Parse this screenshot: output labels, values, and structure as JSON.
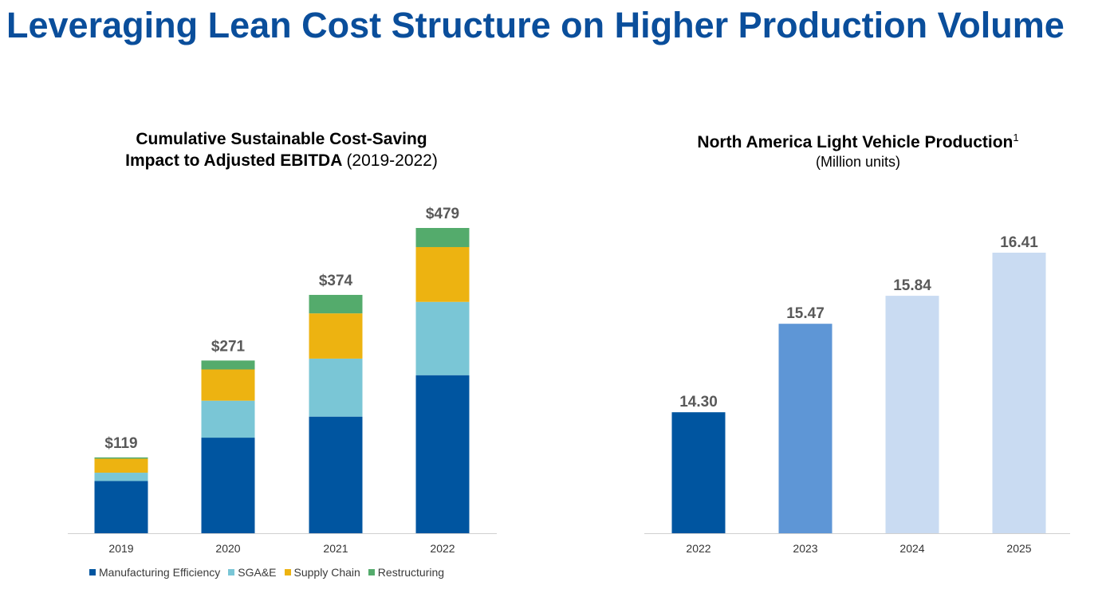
{
  "page": {
    "title": "Leveraging Lean Cost Structure on Higher Production Volume"
  },
  "chart_data": [
    {
      "type": "bar",
      "stacked": true,
      "title_line1": "Cumulative Sustainable Cost-Saving",
      "title_line2_bold": "Impact to Adjusted EBITDA",
      "title_line2_normal": "(2019-2022)",
      "categories": [
        "2019",
        "2020",
        "2021",
        "2022"
      ],
      "totals": [
        119,
        271,
        374,
        479
      ],
      "total_labels": [
        "$119",
        "$271",
        "$374",
        "$479"
      ],
      "series": [
        {
          "name": "Manufacturing Efficiency",
          "color": "#0055a0",
          "values": [
            82,
            150,
            183,
            248
          ]
        },
        {
          "name": "SGA&E",
          "color": "#7ac6d6",
          "values": [
            13,
            58,
            91,
            115
          ]
        },
        {
          "name": "Supply Chain",
          "color": "#edb311",
          "values": [
            22,
            49,
            71,
            86
          ]
        },
        {
          "name": "Restructuring",
          "color": "#54ab6c",
          "values": [
            2,
            14,
            29,
            30
          ]
        }
      ],
      "ylim": [
        0,
        500
      ],
      "grid": false,
      "legend_position": "bottom"
    },
    {
      "type": "bar",
      "title": "North America Light Vehicle Production",
      "title_superscript": "1",
      "subtitle": "(Million units)",
      "categories": [
        "2022",
        "2023",
        "2024",
        "2025"
      ],
      "values": [
        14.3,
        15.47,
        15.84,
        16.41
      ],
      "value_labels": [
        "14.30",
        "15.47",
        "15.84",
        "16.41"
      ],
      "colors": [
        "#0055a0",
        "#5e96d6",
        "#c9dbf2",
        "#c9dbf2"
      ],
      "ylim": [
        12.7,
        16.9
      ],
      "grid": false
    }
  ]
}
